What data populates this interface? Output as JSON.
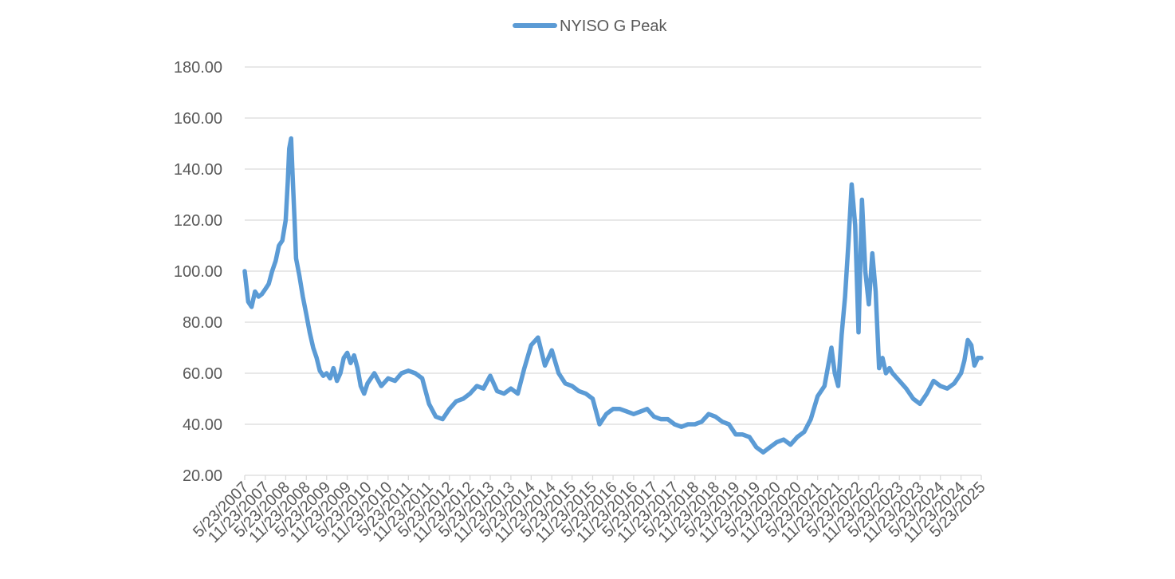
{
  "chart_data": {
    "type": "line",
    "title": "",
    "xlabel": "",
    "ylabel": "",
    "ylim": [
      20,
      180
    ],
    "y_ticks": [
      "20.00",
      "40.00",
      "60.00",
      "80.00",
      "100.00",
      "120.00",
      "140.00",
      "160.00",
      "180.00"
    ],
    "x_ticks": [
      "5/23/2007",
      "11/23/2007",
      "5/23/2008",
      "11/23/2008",
      "5/23/2009",
      "11/23/2009",
      "5/23/2010",
      "11/23/2010",
      "5/23/2011",
      "11/23/2011",
      "5/23/2012",
      "11/23/2012",
      "5/23/2013",
      "11/23/2013",
      "5/23/2014",
      "11/23/2014",
      "5/23/2015",
      "11/23/2015",
      "5/23/2016",
      "11/23/2016",
      "5/23/2017",
      "11/23/2017",
      "5/23/2018",
      "11/23/2018",
      "5/23/2019",
      "11/23/2019",
      "5/23/2020",
      "11/23/2020",
      "5/23/2021",
      "11/23/2021",
      "5/23/2022",
      "11/23/2022",
      "5/23/2023",
      "11/23/2023",
      "5/23/2024",
      "11/23/2024",
      "5/23/2025"
    ],
    "grid": true,
    "legend_position": "top-center",
    "series": [
      {
        "name": "NYISO G Peak",
        "color": "#5b9bd5",
        "x": [
          "5/23/2007",
          "6/23/2007",
          "7/23/2007",
          "8/23/2007",
          "9/23/2007",
          "10/23/2007",
          "11/23/2007",
          "12/23/2007",
          "1/23/2008",
          "2/23/2008",
          "3/23/2008",
          "4/23/2008",
          "5/23/2008",
          "6/10/2008",
          "6/23/2008",
          "7/10/2008",
          "7/23/2008",
          "8/10/2008",
          "8/23/2008",
          "9/23/2008",
          "10/23/2008",
          "11/23/2008",
          "12/23/2008",
          "1/23/2009",
          "2/23/2009",
          "3/23/2009",
          "4/23/2009",
          "5/23/2009",
          "6/23/2009",
          "7/23/2009",
          "8/23/2009",
          "9/23/2009",
          "10/23/2009",
          "11/23/2009",
          "12/23/2009",
          "1/23/2010",
          "2/23/2010",
          "3/23/2010",
          "4/23/2010",
          "5/23/2010",
          "7/23/2010",
          "9/23/2010",
          "11/23/2010",
          "1/23/2011",
          "3/23/2011",
          "5/23/2011",
          "7/23/2011",
          "9/23/2011",
          "11/23/2011",
          "1/23/2012",
          "3/23/2012",
          "5/23/2012",
          "7/23/2012",
          "9/23/2012",
          "11/23/2012",
          "1/23/2013",
          "3/23/2013",
          "5/23/2013",
          "7/23/2013",
          "9/23/2013",
          "11/23/2013",
          "1/23/2014",
          "3/23/2014",
          "5/23/2014",
          "7/23/2014",
          "9/23/2014",
          "11/23/2014",
          "1/23/2015",
          "3/23/2015",
          "5/23/2015",
          "7/23/2015",
          "9/23/2015",
          "11/23/2015",
          "1/23/2016",
          "3/23/2016",
          "5/23/2016",
          "7/23/2016",
          "9/23/2016",
          "11/23/2016",
          "1/23/2017",
          "3/23/2017",
          "5/23/2017",
          "7/23/2017",
          "9/23/2017",
          "11/23/2017",
          "1/23/2018",
          "3/23/2018",
          "5/23/2018",
          "7/23/2018",
          "9/23/2018",
          "11/23/2018",
          "1/23/2019",
          "3/23/2019",
          "5/23/2019",
          "7/23/2019",
          "9/23/2019",
          "11/23/2019",
          "1/23/2020",
          "3/23/2020",
          "5/23/2020",
          "7/23/2020",
          "9/23/2020",
          "11/23/2020",
          "1/23/2021",
          "3/23/2021",
          "5/23/2021",
          "7/23/2021",
          "9/23/2021",
          "10/23/2021",
          "11/23/2021",
          "12/23/2021",
          "1/23/2022",
          "2/23/2022",
          "3/23/2022",
          "4/23/2022",
          "5/23/2022",
          "6/23/2022",
          "7/23/2022",
          "8/23/2022",
          "9/23/2022",
          "10/23/2022",
          "11/23/2022",
          "12/23/2022",
          "1/23/2023",
          "2/23/2023",
          "3/23/2023",
          "5/23/2023",
          "7/23/2023",
          "9/23/2023",
          "11/23/2023",
          "1/23/2024",
          "3/23/2024",
          "5/23/2024",
          "7/23/2024",
          "9/23/2024",
          "11/23/2024",
          "12/23/2024",
          "1/23/2025",
          "2/23/2025",
          "3/23/2025",
          "4/23/2025",
          "5/23/2025"
        ],
        "values": [
          100,
          88,
          86,
          92,
          90,
          91,
          93,
          95,
          100,
          104,
          110,
          112,
          120,
          135,
          148,
          152,
          138,
          120,
          105,
          98,
          90,
          83,
          76,
          70,
          66,
          61,
          59,
          60,
          58,
          62,
          57,
          60,
          66,
          68,
          64,
          67,
          62,
          55,
          52,
          56,
          60,
          55,
          58,
          57,
          60,
          61,
          60,
          58,
          48,
          43,
          42,
          46,
          49,
          50,
          52,
          55,
          54,
          59,
          53,
          52,
          54,
          52,
          62,
          71,
          74,
          63,
          69,
          60,
          56,
          55,
          53,
          52,
          50,
          40,
          44,
          46,
          46,
          45,
          44,
          45,
          46,
          43,
          42,
          42,
          40,
          39,
          40,
          40,
          41,
          44,
          43,
          41,
          40,
          36,
          36,
          35,
          31,
          29,
          31,
          33,
          34,
          32,
          35,
          37,
          42,
          51,
          55,
          70,
          60,
          55,
          75,
          90,
          112,
          134,
          118,
          76,
          128,
          100,
          87,
          107,
          92,
          62,
          66,
          60,
          62,
          60,
          57,
          54,
          50,
          48,
          52,
          57,
          55,
          54,
          56,
          60,
          65,
          73,
          71,
          63,
          66,
          66
        ]
      }
    ]
  }
}
